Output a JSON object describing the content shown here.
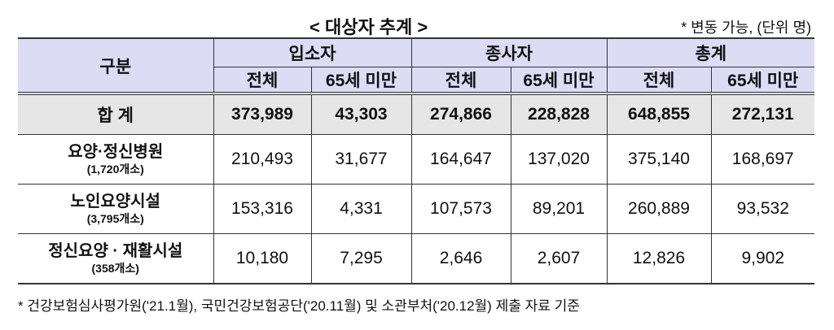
{
  "title": "< 대상자 추계 >",
  "unit_note": "* 변동 가능, (단위 명)",
  "header": {
    "category": "구분",
    "groups": [
      "입소자",
      "종사자",
      "총계"
    ],
    "subcols": [
      "전체",
      "65세 미만",
      "전체",
      "65세 미만",
      "전체",
      "65세 미만"
    ]
  },
  "rows": [
    {
      "label": "합 계",
      "sub": "",
      "values": [
        "373,989",
        "43,303",
        "274,866",
        "228,828",
        "648,855",
        "272,131"
      ]
    },
    {
      "label": "요양·정신병원",
      "sub": "(1,720개소)",
      "values": [
        "210,493",
        "31,677",
        "164,647",
        "137,020",
        "375,140",
        "168,697"
      ]
    },
    {
      "label": "노인요양시설",
      "sub": "(3,795개소)",
      "values": [
        "153,316",
        "4,331",
        "107,573",
        "89,201",
        "260,889",
        "93,532"
      ]
    },
    {
      "label": "정신요양 · 재활시설",
      "sub": "(358개소)",
      "values": [
        "10,180",
        "7,295",
        "2,646",
        "2,607",
        "12,826",
        "9,902"
      ]
    }
  ],
  "footnote": "* 건강보험심사평가원('21.1월), 국민건강보험공단('20.11월) 및 소관부처('20.12월) 제출 자료 기준"
}
